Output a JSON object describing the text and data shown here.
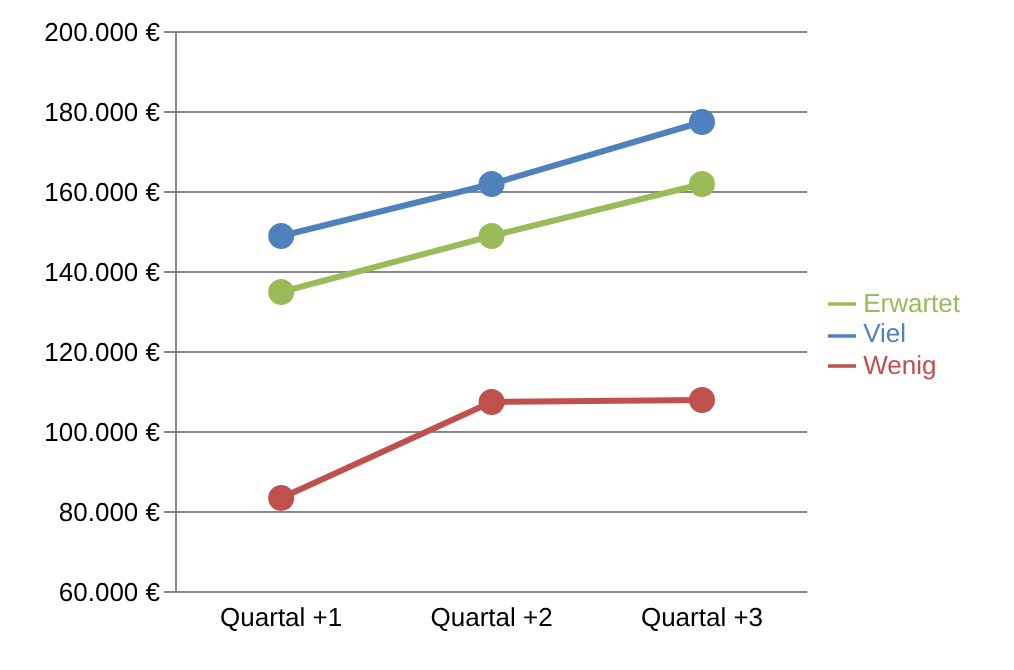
{
  "chart_data": {
    "type": "line",
    "categories": [
      "Quartal +1",
      "Quartal +2",
      "Quartal +3"
    ],
    "series": [
      {
        "name": "Viel",
        "color": "#4f81bd",
        "values": [
          149000,
          162000,
          177500
        ]
      },
      {
        "name": "Erwartet",
        "color": "#9bbb59",
        "values": [
          135000,
          149000,
          162000
        ]
      },
      {
        "name": "Wenig",
        "color": "#c0504d",
        "values": [
          83500,
          107500,
          108000
        ]
      }
    ],
    "ylim": [
      60000,
      200000
    ],
    "yticks": [
      {
        "value": 60000,
        "label": "60.000 €"
      },
      {
        "value": 80000,
        "label": "80.000 €"
      },
      {
        "value": 100000,
        "label": "100.000 €"
      },
      {
        "value": 120000,
        "label": "120.000 €"
      },
      {
        "value": 140000,
        "label": "140.000 €"
      },
      {
        "value": 160000,
        "label": "160.000 €"
      },
      {
        "value": 180000,
        "label": "180.000 €"
      },
      {
        "value": 200000,
        "label": "200.000 €"
      }
    ],
    "grid": "y",
    "legend": "right",
    "marker": "circle",
    "line_style": "solid"
  }
}
